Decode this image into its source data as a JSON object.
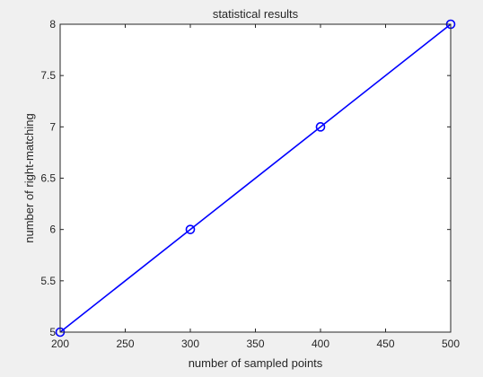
{
  "chart_data": {
    "type": "line",
    "title": "statistical results",
    "xlabel": "number of sampled points",
    "ylabel": "number of right-matching",
    "xlim": [
      200,
      500
    ],
    "ylim": [
      5,
      8
    ],
    "xticks": [
      200,
      250,
      300,
      350,
      400,
      450,
      500
    ],
    "yticks": [
      5,
      5.5,
      6,
      6.5,
      7,
      7.5,
      8
    ],
    "xtick_labels": [
      "200",
      "250",
      "300",
      "350",
      "400",
      "450",
      "500"
    ],
    "ytick_labels": [
      "5",
      "5.5",
      "6",
      "6.5",
      "7",
      "7.5",
      "8"
    ],
    "grid": false,
    "series": [
      {
        "x": [
          200,
          300,
          400,
          500
        ],
        "values": [
          5,
          6,
          7,
          8
        ],
        "color": "#0000ff",
        "marker": "circle"
      }
    ]
  }
}
